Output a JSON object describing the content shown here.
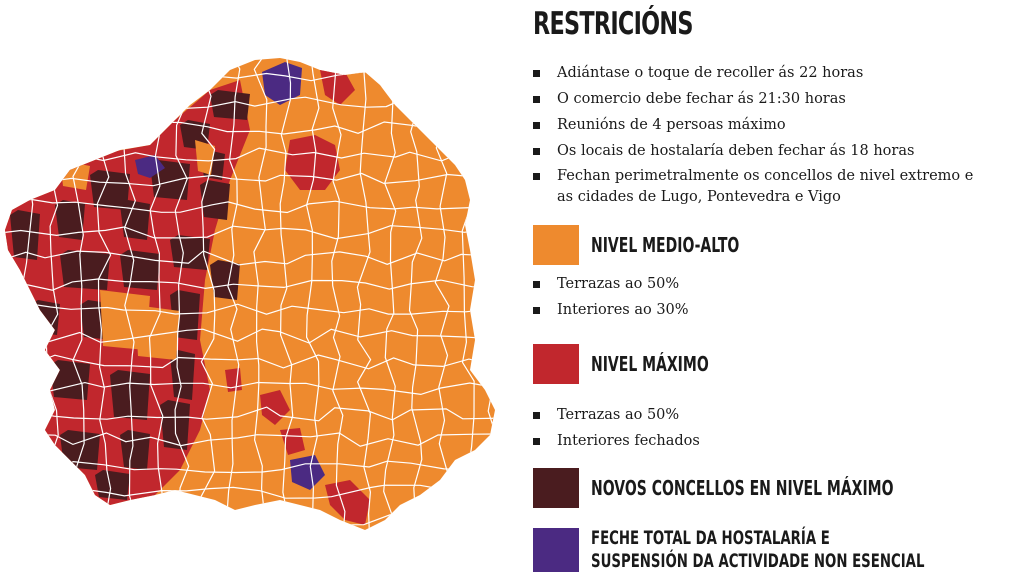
{
  "title": "RESTRICIÓNS",
  "main_bullets": [
    "Adiántase o toque de recoller ás 22 horas",
    "O comercio debe fechar ás 21:30 horas",
    "Reunións de 4 persoas máximo",
    "Os locais de hostalaría deben fechar ás 18 horas",
    "Fechan perimetralmente os concellos de nivel extremo e as cidades de Lugo, Pontevedra e Vigo"
  ],
  "legend": {
    "medio_alto": {
      "label": "NIVEL MEDIO-ALTO",
      "color": "#ee8a2e",
      "bullets": [
        "Terrazas ao 50%",
        "Interiores ao 30%"
      ]
    },
    "maximo": {
      "label": "NIVEL MÁXIMO",
      "color": "#c1272d",
      "bullets": [
        "Terrazas ao 50%",
        "Interiores fechados"
      ]
    },
    "novos": {
      "label": "NOVOS CONCELLOS EN NIVEL MÁXIMO",
      "color": "#4a1c1f"
    },
    "feche": {
      "label_line1": "FECHE TOTAL DA HOSTALARÍA E",
      "label_line2": "SUSPENSIÓN DA ACTIVIDADE NON ESENCIAL",
      "color": "#4b2a82"
    }
  },
  "map": {
    "border_color": "#ffffff"
  }
}
